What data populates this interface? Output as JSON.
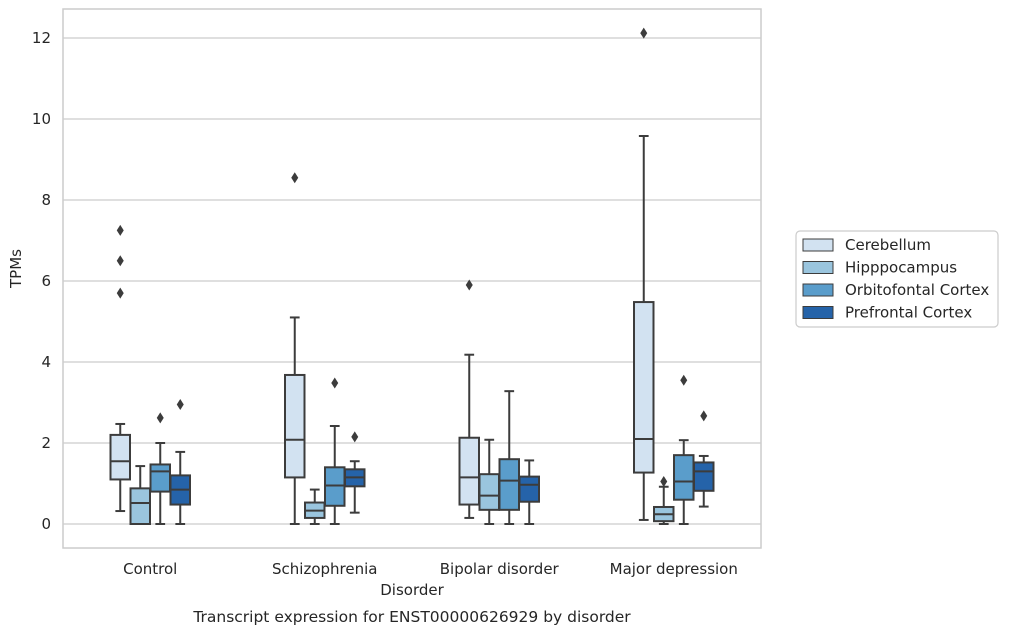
{
  "chart_data": {
    "type": "box",
    "caption": "Transcript expression for ENST00000626929 by disorder",
    "xlabel": "Disorder",
    "ylabel": "TPMs",
    "ylim": [
      -0.58,
      12.7
    ],
    "yticks": [
      0,
      2,
      4,
      6,
      8,
      10,
      12
    ],
    "grid": "y",
    "legend_position": "right",
    "categories": [
      "Control",
      "Schizophrenia",
      "Bipolar disorder",
      "Major depression"
    ],
    "series": [
      {
        "name": "Cerebellum",
        "color": "#d2e2f1",
        "boxes": [
          {
            "whisker_low": 0.32,
            "q1": 1.1,
            "median": 1.55,
            "q3": 2.2,
            "whisker_high": 2.47,
            "outliers": [
              5.7,
              6.5,
              7.25
            ]
          },
          {
            "whisker_low": 0.0,
            "q1": 1.15,
            "median": 2.08,
            "q3": 3.68,
            "whisker_high": 5.1,
            "outliers": [
              8.55
            ]
          },
          {
            "whisker_low": 0.15,
            "q1": 0.48,
            "median": 1.15,
            "q3": 2.13,
            "whisker_high": 4.18,
            "outliers": [
              5.9
            ]
          },
          {
            "whisker_low": 0.1,
            "q1": 1.27,
            "median": 2.1,
            "q3": 5.48,
            "whisker_high": 9.58,
            "outliers": [
              12.12
            ]
          }
        ]
      },
      {
        "name": "Hipppocampus",
        "color": "#9ac5de",
        "boxes": [
          {
            "whisker_low": 0.0,
            "q1": 0.0,
            "median": 0.52,
            "q3": 0.88,
            "whisker_high": 1.43,
            "outliers": []
          },
          {
            "whisker_low": 0.0,
            "q1": 0.15,
            "median": 0.33,
            "q3": 0.53,
            "whisker_high": 0.85,
            "outliers": []
          },
          {
            "whisker_low": 0.0,
            "q1": 0.35,
            "median": 0.7,
            "q3": 1.23,
            "whisker_high": 2.08,
            "outliers": []
          },
          {
            "whisker_low": 0.0,
            "q1": 0.07,
            "median": 0.24,
            "q3": 0.42,
            "whisker_high": 0.92,
            "outliers": [
              1.05
            ]
          }
        ]
      },
      {
        "name": "Orbitofontal Cortex",
        "color": "#5a9dcb",
        "boxes": [
          {
            "whisker_low": 0.0,
            "q1": 0.8,
            "median": 1.3,
            "q3": 1.47,
            "whisker_high": 2.0,
            "outliers": [
              2.62
            ]
          },
          {
            "whisker_low": 0.0,
            "q1": 0.45,
            "median": 0.95,
            "q3": 1.4,
            "whisker_high": 2.42,
            "outliers": [
              3.48
            ]
          },
          {
            "whisker_low": 0.0,
            "q1": 0.35,
            "median": 1.07,
            "q3": 1.6,
            "whisker_high": 3.28,
            "outliers": []
          },
          {
            "whisker_low": 0.0,
            "q1": 0.6,
            "median": 1.05,
            "q3": 1.7,
            "whisker_high": 2.07,
            "outliers": [
              3.55
            ]
          }
        ]
      },
      {
        "name": "Prefrontal Cortex",
        "color": "#2563a9",
        "boxes": [
          {
            "whisker_low": 0.0,
            "q1": 0.48,
            "median": 0.85,
            "q3": 1.2,
            "whisker_high": 1.78,
            "outliers": [
              2.95
            ]
          },
          {
            "whisker_low": 0.28,
            "q1": 0.93,
            "median": 1.15,
            "q3": 1.35,
            "whisker_high": 1.55,
            "outliers": [
              2.15
            ]
          },
          {
            "whisker_low": 0.0,
            "q1": 0.55,
            "median": 0.97,
            "q3": 1.17,
            "whisker_high": 1.57,
            "outliers": []
          },
          {
            "whisker_low": 0.43,
            "q1": 0.82,
            "median": 1.3,
            "q3": 1.52,
            "whisker_high": 1.68,
            "outliers": [
              2.67
            ]
          }
        ]
      }
    ]
  }
}
